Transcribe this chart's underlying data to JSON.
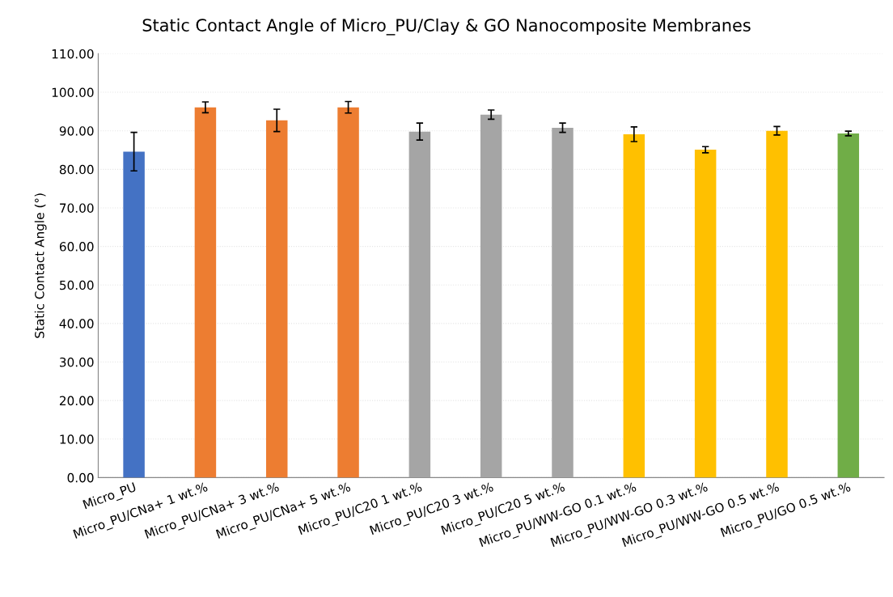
{
  "chart_data": {
    "type": "bar",
    "title": "Static Contact Angle of Micro_PU/Clay & GO Nanocomposite Membranes",
    "ylabel": "Static Contact Angle (°)",
    "categories": [
      "Micro_PU",
      "Micro_PU/CNa+ 1 wt.%",
      "Micro_PU/CNa+ 3 wt.%",
      "Micro_PU/CNa+ 5 wt.%",
      "Micro_PU/C20 1 wt.%",
      "Micro_PU/C20 3 wt.%",
      "Micro_PU/C20 5 wt.%",
      "Micro_PU/WW-GO 0.1 wt.%",
      "Micro_PU/WW-GO 0.3 wt.%",
      "Micro_PU/WW-GO 0.5 wt.%",
      "Micro_PU/GO 0.5 wt.%"
    ],
    "values": [
      84.6,
      96.1,
      92.7,
      96.1,
      89.8,
      94.2,
      90.8,
      89.1,
      85.1,
      90.0,
      89.3
    ],
    "errors": [
      5.0,
      1.4,
      2.9,
      1.5,
      2.2,
      1.2,
      1.2,
      1.9,
      0.8,
      1.1,
      0.6
    ],
    "colors": [
      "#4472c4",
      "#ed7d31",
      "#ed7d31",
      "#ed7d31",
      "#a5a5a5",
      "#a5a5a5",
      "#a5a5a5",
      "#ffc000",
      "#ffc000",
      "#ffc000",
      "#70ad47"
    ],
    "ylim": [
      0,
      110
    ],
    "yticks": [
      {
        "value": 0,
        "label": "0.00"
      },
      {
        "value": 10,
        "label": "10.00"
      },
      {
        "value": 20,
        "label": "20.00"
      },
      {
        "value": 30,
        "label": "30.00"
      },
      {
        "value": 40,
        "label": "40.00"
      },
      {
        "value": 50,
        "label": "50.00"
      },
      {
        "value": 60,
        "label": "60.00"
      },
      {
        "value": 70,
        "label": "70.00"
      },
      {
        "value": 80,
        "label": "80.00"
      },
      {
        "value": 90,
        "label": "90.00"
      },
      {
        "value": 100,
        "label": "100.00"
      },
      {
        "value": 110,
        "label": "110.00"
      }
    ],
    "grid": "y"
  }
}
